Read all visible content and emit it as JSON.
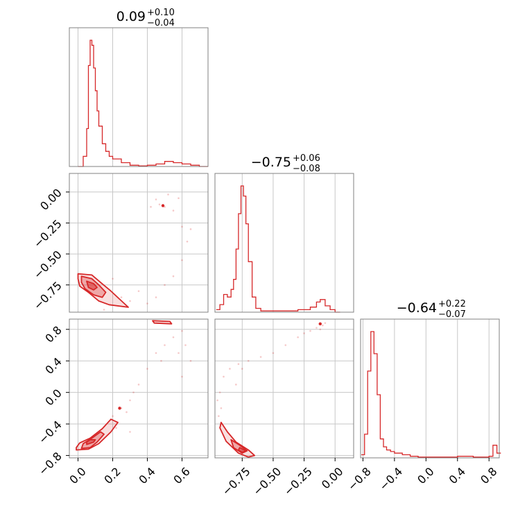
{
  "figure": {
    "type": "corner_plot",
    "color": "#d62728"
  },
  "chart_data": [
    {
      "type": "histogram",
      "panel": "diag-1",
      "title": {
        "base": "0.09",
        "sup": "+0.10",
        "sub": "−0.04"
      },
      "x": [
        0.0,
        0.03,
        0.05,
        0.06,
        0.07,
        0.08,
        0.09,
        0.1,
        0.11,
        0.12,
        0.14,
        0.16,
        0.18,
        0.2,
        0.25,
        0.3,
        0.35,
        0.4,
        0.45,
        0.5,
        0.55,
        0.6,
        0.65,
        0.7
      ],
      "values": [
        0,
        8,
        30,
        80,
        100,
        96,
        78,
        60,
        44,
        32,
        18,
        12,
        8,
        6,
        3,
        1,
        0.5,
        1,
        2,
        4,
        3,
        2,
        1,
        0
      ],
      "xlim": [
        -0.05,
        0.75
      ],
      "xticks": [
        0.0,
        0.2,
        0.4,
        0.6
      ],
      "xticklabels": [
        "0.0",
        "0.2",
        "0.4",
        "0.6"
      ]
    },
    {
      "type": "scatter_density",
      "panel": "offdiag-2-1",
      "xlim": [
        -0.05,
        0.75
      ],
      "ylim": [
        -0.97,
        0.15
      ],
      "yticks": [
        0.0,
        -0.25,
        -0.5,
        -0.75
      ],
      "yticklabels": [
        "0.00",
        "−0.25",
        "−0.50",
        "−0.75"
      ],
      "contours": [
        [
          [
            0.0,
            -0.66
          ],
          [
            0.08,
            -0.67
          ],
          [
            0.13,
            -0.73
          ],
          [
            0.19,
            -0.8
          ],
          [
            0.29,
            -0.93
          ],
          [
            0.18,
            -0.91
          ],
          [
            0.12,
            -0.88
          ],
          [
            0.06,
            -0.81
          ],
          [
            0.01,
            -0.76
          ],
          [
            0.0,
            -0.7
          ]
        ],
        [
          [
            0.02,
            -0.68
          ],
          [
            0.08,
            -0.7
          ],
          [
            0.12,
            -0.75
          ],
          [
            0.16,
            -0.81
          ],
          [
            0.14,
            -0.85
          ],
          [
            0.09,
            -0.83
          ],
          [
            0.04,
            -0.78
          ],
          [
            0.02,
            -0.73
          ]
        ],
        [
          [
            0.05,
            -0.72
          ],
          [
            0.09,
            -0.74
          ],
          [
            0.11,
            -0.77
          ],
          [
            0.09,
            -0.79
          ],
          [
            0.06,
            -0.77
          ]
        ]
      ],
      "points": [
        [
          0.47,
          -0.1
        ],
        [
          0.5,
          -0.12
        ],
        [
          0.45,
          -0.06
        ],
        [
          0.55,
          -0.15
        ],
        [
          0.6,
          -0.28
        ],
        [
          0.63,
          -0.4
        ],
        [
          0.6,
          -0.55
        ],
        [
          0.55,
          -0.68
        ],
        [
          0.5,
          -0.75
        ],
        [
          0.45,
          -0.85
        ],
        [
          0.4,
          -0.9
        ],
        [
          0.3,
          -0.88
        ],
        [
          0.35,
          -0.8
        ],
        [
          0.42,
          -0.12
        ],
        [
          0.52,
          -0.02
        ],
        [
          0.58,
          -0.05
        ],
        [
          0.65,
          -0.3
        ],
        [
          0.2,
          -0.7
        ],
        [
          0.25,
          -0.85
        ],
        [
          0.15,
          -0.95
        ]
      ],
      "peak": [
        0.49,
        -0.11
      ]
    },
    {
      "type": "histogram",
      "panel": "diag-2",
      "title": {
        "base": "−0.75",
        "sup": "+0.06",
        "sub": "−0.08"
      },
      "x": [
        -0.96,
        -0.93,
        -0.9,
        -0.87,
        -0.84,
        -0.82,
        -0.8,
        -0.78,
        -0.76,
        -0.74,
        -0.72,
        -0.7,
        -0.67,
        -0.64,
        -0.6,
        -0.5,
        -0.4,
        -0.3,
        -0.2,
        -0.15,
        -0.12,
        -0.08,
        -0.04,
        0.0
      ],
      "values": [
        2,
        6,
        14,
        12,
        18,
        26,
        50,
        78,
        100,
        92,
        70,
        40,
        12,
        3,
        1,
        1,
        1,
        2,
        4,
        8,
        10,
        5,
        2,
        0
      ],
      "xlim": [
        -0.97,
        0.15
      ],
      "xticks": [
        -0.75,
        -0.5,
        -0.25,
        0.0
      ],
      "xticklabels": [
        "−0.75",
        "−0.50",
        "−0.25",
        "0.00"
      ]
    },
    {
      "type": "scatter_density",
      "panel": "offdiag-3-1",
      "xlim": [
        -0.05,
        0.75
      ],
      "ylim": [
        -0.83,
        0.93
      ],
      "yticks": [
        0.8,
        0.4,
        0.0,
        -0.4,
        -0.8
      ],
      "yticklabels": [
        "0.8",
        "0.4",
        "0.0",
        "−0.4",
        "−0.8"
      ],
      "contours": [
        [
          [
            -0.01,
            -0.73
          ],
          [
            0.06,
            -0.72
          ],
          [
            0.12,
            -0.65
          ],
          [
            0.19,
            -0.5
          ],
          [
            0.23,
            -0.38
          ],
          [
            0.19,
            -0.34
          ],
          [
            0.14,
            -0.46
          ],
          [
            0.07,
            -0.58
          ],
          [
            0.01,
            -0.64
          ],
          [
            -0.01,
            -0.7
          ]
        ],
        [
          [
            0.02,
            -0.71
          ],
          [
            0.07,
            -0.7
          ],
          [
            0.11,
            -0.63
          ],
          [
            0.15,
            -0.53
          ],
          [
            0.13,
            -0.5
          ],
          [
            0.08,
            -0.58
          ],
          [
            0.03,
            -0.65
          ]
        ],
        [
          [
            0.05,
            -0.66
          ],
          [
            0.09,
            -0.63
          ],
          [
            0.1,
            -0.6
          ],
          [
            0.07,
            -0.6
          ],
          [
            0.05,
            -0.63
          ]
        ],
        [
          [
            0.43,
            0.91
          ],
          [
            0.53,
            0.9
          ],
          [
            0.54,
            0.87
          ],
          [
            0.44,
            0.88
          ]
        ]
      ],
      "points": [
        [
          0.25,
          -0.2
        ],
        [
          0.3,
          -0.1
        ],
        [
          0.35,
          0.1
        ],
        [
          0.4,
          0.3
        ],
        [
          0.45,
          0.5
        ],
        [
          0.5,
          0.6
        ],
        [
          0.55,
          0.7
        ],
        [
          0.6,
          0.78
        ],
        [
          0.62,
          0.6
        ],
        [
          0.65,
          0.4
        ],
        [
          0.2,
          -0.3
        ],
        [
          0.28,
          -0.25
        ],
        [
          0.32,
          0.0
        ],
        [
          0.48,
          0.4
        ],
        [
          0.58,
          0.5
        ],
        [
          0.6,
          0.2
        ],
        [
          0.3,
          -0.5
        ],
        [
          0.22,
          -0.45
        ]
      ],
      "peak": [
        0.24,
        -0.2
      ]
    },
    {
      "type": "scatter_density",
      "panel": "offdiag-3-2",
      "xlim": [
        -0.97,
        0.15
      ],
      "ylim": [
        -0.83,
        0.93
      ],
      "contours": [
        [
          [
            -0.92,
            -0.38
          ],
          [
            -0.87,
            -0.5
          ],
          [
            -0.8,
            -0.63
          ],
          [
            -0.7,
            -0.73
          ],
          [
            -0.65,
            -0.8
          ],
          [
            -0.7,
            -0.82
          ],
          [
            -0.78,
            -0.77
          ],
          [
            -0.88,
            -0.62
          ],
          [
            -0.93,
            -0.45
          ]
        ],
        [
          [
            -0.84,
            -0.6
          ],
          [
            -0.77,
            -0.67
          ],
          [
            -0.71,
            -0.74
          ],
          [
            -0.75,
            -0.77
          ],
          [
            -0.82,
            -0.7
          ]
        ],
        [
          [
            -0.77,
            -0.7
          ],
          [
            -0.72,
            -0.74
          ],
          [
            -0.75,
            -0.76
          ],
          [
            -0.78,
            -0.73
          ]
        ]
      ],
      "points": [
        [
          -0.95,
          -0.1
        ],
        [
          -0.93,
          0.0
        ],
        [
          -0.9,
          0.2
        ],
        [
          -0.85,
          0.3
        ],
        [
          -0.78,
          0.36
        ],
        [
          -0.7,
          0.4
        ],
        [
          -0.6,
          0.45
        ],
        [
          -0.5,
          0.5
        ],
        [
          -0.4,
          0.6
        ],
        [
          -0.3,
          0.7
        ],
        [
          -0.2,
          0.78
        ],
        [
          -0.15,
          0.82
        ],
        [
          -0.1,
          0.85
        ],
        [
          -0.08,
          0.88
        ],
        [
          -0.12,
          0.8
        ],
        [
          -0.92,
          -0.2
        ],
        [
          -0.94,
          -0.3
        ],
        [
          -0.8,
          0.1
        ],
        [
          -0.75,
          0.3
        ],
        [
          -0.25,
          0.75
        ]
      ],
      "peak": [
        -0.12,
        0.87
      ]
    },
    {
      "type": "histogram",
      "panel": "diag-3",
      "title": {
        "base": "−0.64",
        "sup": "+0.22",
        "sub": "−0.07"
      },
      "x": [
        -0.82,
        -0.78,
        -0.74,
        -0.7,
        -0.66,
        -0.62,
        -0.58,
        -0.54,
        -0.5,
        -0.45,
        -0.4,
        -0.3,
        -0.2,
        -0.1,
        0.0,
        0.2,
        0.4,
        0.6,
        0.8,
        0.85,
        0.9
      ],
      "values": [
        2,
        15,
        55,
        80,
        66,
        40,
        12,
        7,
        5,
        4,
        3,
        2,
        1,
        0.5,
        0.5,
        0.5,
        1,
        0.5,
        1,
        8,
        3
      ],
      "xlim": [
        -0.83,
        0.93
      ],
      "xticks": [
        -0.8,
        -0.4,
        0.0,
        0.4,
        0.8
      ],
      "xticklabels": [
        "−0.8",
        "−0.4",
        "0.0",
        "0.4",
        "0.8"
      ]
    }
  ]
}
